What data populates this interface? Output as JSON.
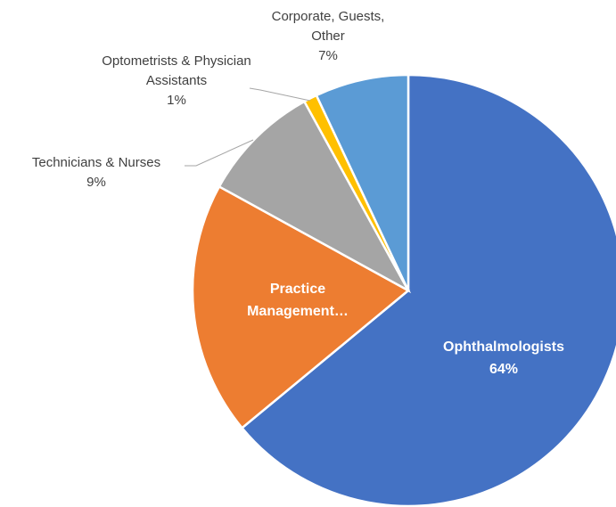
{
  "chart_data": {
    "type": "pie",
    "categories": [
      "Ophthalmologists",
      "Practice Management…",
      "Technicians & Nurses",
      "Optometrists & Physician Assistants",
      "Corporate, Guests, Other"
    ],
    "values": [
      64,
      19,
      9,
      1,
      7
    ],
    "value_labels": [
      "64%",
      null,
      "9%",
      "1%",
      "7%"
    ],
    "colors": [
      "#4472c4",
      "#ed7d31",
      "#a5a5a5",
      "#ffc000",
      "#5b9bd5"
    ]
  }
}
